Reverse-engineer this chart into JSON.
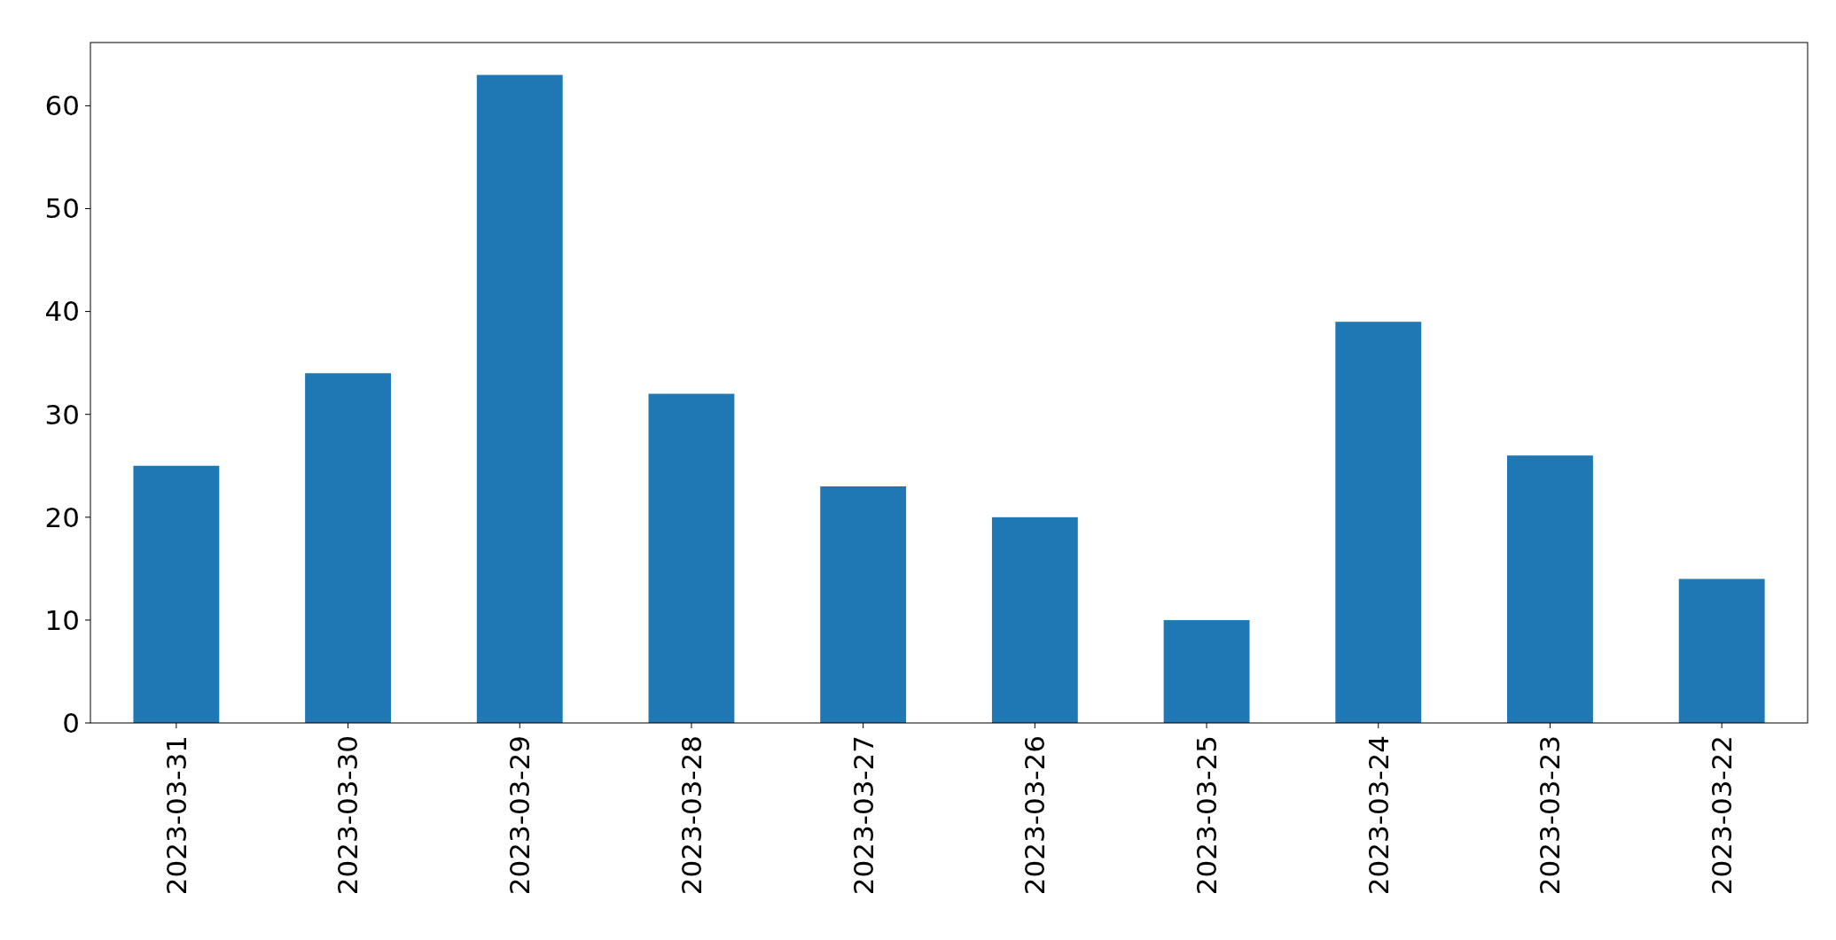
{
  "chart_data": {
    "type": "bar",
    "categories": [
      "2023-03-31",
      "2023-03-30",
      "2023-03-29",
      "2023-03-28",
      "2023-03-27",
      "2023-03-26",
      "2023-03-25",
      "2023-03-24",
      "2023-03-23",
      "2023-03-22"
    ],
    "values": [
      25,
      34,
      63,
      32,
      23,
      20,
      10,
      39,
      26,
      14
    ],
    "color": "#1f77b4",
    "ylim": [
      0,
      66.15
    ],
    "yticks": [
      0,
      10,
      20,
      30,
      40,
      50,
      60
    ],
    "grid": false
  }
}
